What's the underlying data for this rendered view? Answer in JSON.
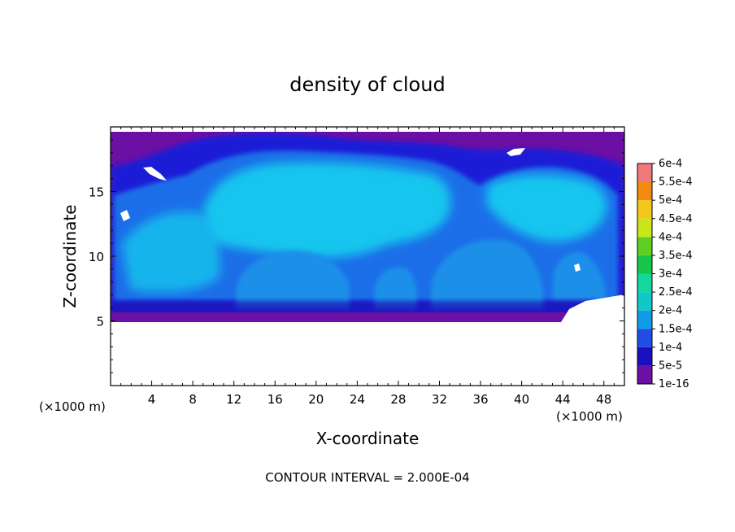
{
  "chart_data": {
    "type": "heatmap",
    "title": "density of cloud",
    "xlabel": "X-coordinate",
    "ylabel": "Z-coordinate",
    "x_unit": "(×1000 m)",
    "y_unit": "(×1000 m)",
    "xlim": [
      0,
      50
    ],
    "ylim": [
      0,
      20
    ],
    "x_ticks": [
      4,
      8,
      12,
      16,
      20,
      24,
      28,
      32,
      36,
      40,
      44,
      48
    ],
    "y_ticks": [
      5,
      10,
      15
    ],
    "footnote": "CONTOUR INTERVAL = 2.000E-04",
    "colorbar": {
      "levels": [
        "1e-16",
        "5e-5",
        "1e-4",
        "1.5e-4",
        "2e-4",
        "2.5e-4",
        "3e-4",
        "3.5e-4",
        "4e-4",
        "4.5e-4",
        "5e-4",
        "5.5e-4",
        "6e-4"
      ],
      "colors": [
        "#6b0fa5",
        "#1a0fc0",
        "#1f4de6",
        "#0f9be6",
        "#10c8c8",
        "#12d99a",
        "#18c64a",
        "#5fd022",
        "#c8e61a",
        "#f2c81a",
        "#f28a10",
        "#f04a1a",
        "#f07a7a"
      ]
    },
    "field": {
      "cloud_base_km": 5,
      "cloud_top_km": 19.7,
      "value_range": [
        "1e-16",
        "1.5e-4"
      ],
      "description_colors": {
        "edge": "#6b0fa5",
        "low": "#1c1fd8",
        "mid": "#1f7ef0",
        "high": "#19c9ef"
      }
    }
  }
}
